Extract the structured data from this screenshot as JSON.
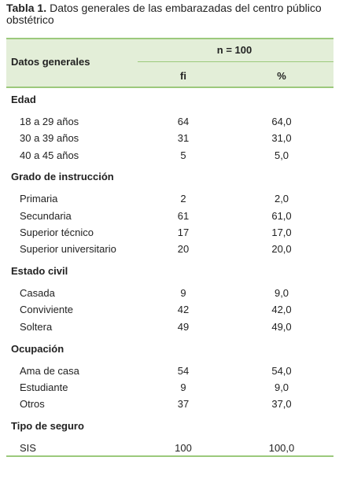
{
  "header": {
    "label": "Tabla 1.",
    "title": "Datos generales de las embarazadas del centro público obstétrico"
  },
  "table": {
    "row_header": "Datos generales",
    "group_header": "n = 100",
    "columns": [
      "fi",
      "%"
    ],
    "sections": [
      {
        "heading": "Edad",
        "rows": [
          [
            "18 a 29 años",
            "64",
            "64,0"
          ],
          [
            "30 a 39 años",
            "31",
            "31,0"
          ],
          [
            "40 a 45 años",
            "5",
            "5,0"
          ]
        ]
      },
      {
        "heading": "Grado de instrucción",
        "rows": [
          [
            "Primaria",
            "2",
            "2,0"
          ],
          [
            "Secundaria",
            "61",
            "61,0"
          ],
          [
            "Superior técnico",
            "17",
            "17,0"
          ],
          [
            "Superior universitario",
            "20",
            "20,0"
          ]
        ]
      },
      {
        "heading": "Estado civil",
        "rows": [
          [
            "Casada",
            "9",
            "9,0"
          ],
          [
            "Conviviente",
            "42",
            "42,0"
          ],
          [
            "Soltera",
            "49",
            "49,0"
          ]
        ]
      },
      {
        "heading": "Ocupación",
        "rows": [
          [
            "Ama de casa",
            "54",
            "54,0"
          ],
          [
            "Estudiante",
            "9",
            "9,0"
          ],
          [
            "Otros",
            "37",
            "37,0"
          ]
        ]
      },
      {
        "heading": "Tipo de seguro",
        "rows": [
          [
            "SIS",
            "100",
            "100,0"
          ]
        ]
      }
    ]
  }
}
